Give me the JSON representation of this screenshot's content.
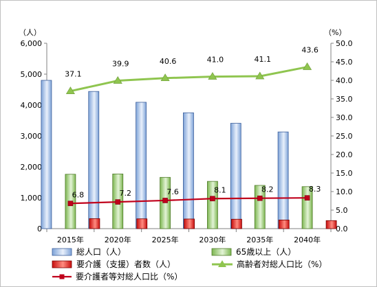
{
  "chart_data": {
    "type": "bar",
    "categories": [
      "2015年",
      "2020年",
      "2025年",
      "2030年",
      "2035年",
      "2040年"
    ],
    "y_left_unit": "（人）",
    "y_right_unit": "（%）",
    "y_left_ticks": [
      "0",
      "1,000",
      "2,000",
      "3,000",
      "4,000",
      "5,000",
      "6,000"
    ],
    "y_right_ticks": [
      "0.0",
      "5.0",
      "10.0",
      "15.0",
      "20.0",
      "25.0",
      "30.0",
      "35.0",
      "40.0",
      "45.0",
      "50.0"
    ],
    "ylim_left": [
      0,
      6000
    ],
    "ylim_right": [
      0,
      50
    ],
    "grid": false,
    "legend_position": "bottom",
    "series": [
      {
        "name": "総人口（人）",
        "type": "bar",
        "axis": "left",
        "color": "#8db3e2",
        "values": [
          4800,
          4440,
          4090,
          3750,
          3410,
          3130
        ]
      },
      {
        "name": "65歳以上（人）",
        "type": "bar",
        "axis": "left",
        "color": "#9bd06e",
        "values": [
          1760,
          1770,
          1660,
          1530,
          1400,
          1360
        ]
      },
      {
        "name": "要介護（支援）者数（人）",
        "type": "bar",
        "axis": "left",
        "color": "#e8221a",
        "values": [
          325,
          318,
          312,
          305,
          280,
          260
        ]
      },
      {
        "name": "高齢者対総人口比（%）",
        "type": "line",
        "axis": "right",
        "color": "#8fc54f",
        "values": [
          37.1,
          39.9,
          40.6,
          41.0,
          41.1,
          43.6
        ],
        "data_labels": [
          "37.1",
          "39.9",
          "40.6",
          "41.0",
          "41.1",
          "43.6"
        ]
      },
      {
        "name": "要介護者等対総人口比（%）",
        "type": "line",
        "axis": "right",
        "color": "#c0001b",
        "values": [
          6.8,
          7.2,
          7.6,
          8.1,
          8.2,
          8.3
        ],
        "data_labels": [
          "6.8",
          "7.2",
          "7.6",
          "8.1",
          "8.2",
          "8.3"
        ]
      }
    ]
  }
}
